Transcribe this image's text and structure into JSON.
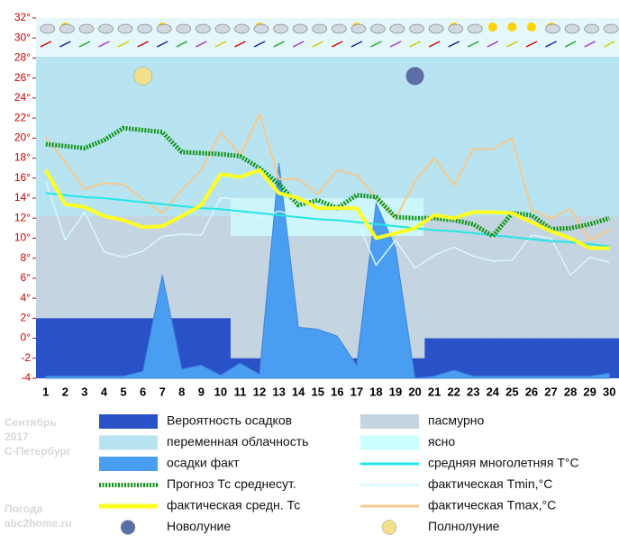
{
  "chart_data": {
    "type": "line",
    "x": [
      1,
      2,
      3,
      4,
      5,
      6,
      7,
      8,
      9,
      10,
      11,
      12,
      13,
      14,
      15,
      16,
      17,
      18,
      19,
      20,
      21,
      22,
      23,
      24,
      25,
      26,
      27,
      28,
      29,
      30
    ],
    "xlim": [
      0.5,
      30.5
    ],
    "ylim": [
      -4,
      32
    ],
    "yticks": [
      {
        "value": -4,
        "label": "-4"
      },
      {
        "value": -2,
        "label": "-2"
      },
      {
        "value": 0,
        "label": "0°"
      },
      {
        "value": 2,
        "label": "2°"
      },
      {
        "value": 4,
        "label": "4°"
      },
      {
        "value": 6,
        "label": "6°"
      },
      {
        "value": 8,
        "label": "8°"
      },
      {
        "value": 10,
        "label": "10°"
      },
      {
        "value": 12,
        "label": "12°"
      },
      {
        "value": 14,
        "label": "14°"
      },
      {
        "value": 16,
        "label": "16°"
      },
      {
        "value": 18,
        "label": "18°"
      },
      {
        "value": 20,
        "label": "20°"
      },
      {
        "value": 22,
        "label": "22°"
      },
      {
        "value": 24,
        "label": "24°"
      },
      {
        "value": 26,
        "label": "26°"
      },
      {
        "value": 28,
        "label": "28°"
      },
      {
        "value": 30,
        "label": "30°"
      },
      {
        "value": 32,
        "label": "32°"
      }
    ],
    "series": [
      {
        "name": "Вероятность осадков",
        "style": "band",
        "color": "#2a52c8",
        "values": [
          2,
          2,
          2,
          2,
          2,
          2,
          2,
          2,
          2,
          2,
          -2,
          -2,
          -2,
          -2,
          -2,
          -2,
          -2,
          -2,
          -2,
          -2,
          0,
          0,
          0,
          0,
          0,
          0,
          0,
          0,
          0,
          0
        ]
      },
      {
        "name": "осадки факт",
        "style": "area",
        "color": "#4a9ef2",
        "values": [
          -3.8,
          -3.8,
          -3.8,
          -3.8,
          -3.8,
          -3.3,
          6.3,
          -3.1,
          -2.7,
          -3.7,
          -2.5,
          -3.6,
          17.5,
          1.1,
          0.9,
          0.2,
          -2.7,
          13.5,
          9,
          -4,
          -3.8,
          -3.2,
          -3.8,
          -3.8,
          -3.8,
          -3.8,
          -3.8,
          -3.8,
          -3.8,
          -3.5
        ]
      },
      {
        "name": "Прогноз Тс среднесут.",
        "style": "dotted",
        "color": "#11961a",
        "values": [
          19.4,
          19.2,
          19,
          19.8,
          21,
          20.8,
          20.6,
          18.6,
          18.5,
          18.4,
          18.2,
          17,
          15.4,
          13.3,
          13.8,
          13,
          14.3,
          14.1,
          12.1,
          12,
          12,
          11.8,
          11.4,
          10.2,
          12.5,
          12.3,
          10.9,
          11,
          11.4,
          12
        ]
      },
      {
        "name": "фактическая средн. Тс",
        "style": "line",
        "width": 4,
        "color": "#ffff20",
        "values": [
          16.8,
          13.4,
          13.1,
          12.2,
          11.8,
          11.1,
          11.2,
          12.2,
          13.3,
          16.4,
          16.1,
          16.8,
          14.5,
          14,
          13,
          13,
          13,
          10,
          10.5,
          11,
          12.3,
          12,
          12.6,
          12.6,
          12.5,
          11.6,
          10.7,
          10,
          9,
          9
        ]
      },
      {
        "name": "средняя многолетняя T°C",
        "style": "line",
        "width": 2,
        "color": "#22e6e6",
        "values": [
          14.5,
          14.3,
          14.1,
          14,
          13.8,
          13.6,
          13.4,
          13.2,
          13,
          12.9,
          12.7,
          12.5,
          12.3,
          12.1,
          11.9,
          11.8,
          11.6,
          11.4,
          11.2,
          11,
          10.8,
          10.7,
          10.5,
          10.3,
          10.1,
          9.9,
          9.7,
          9.6,
          9.4,
          9.2
        ]
      },
      {
        "name": "фактическая Tmin,°C",
        "style": "line",
        "width": 1.5,
        "color": "#d8f8ff",
        "values": [
          15.7,
          9.8,
          12.6,
          8.6,
          8.1,
          8.7,
          10.2,
          10.4,
          10.3,
          14,
          13.9,
          12,
          12.7,
          12.2,
          11.4,
          10.6,
          11.8,
          7.3,
          9.8,
          7,
          8.3,
          9.1,
          8.2,
          7.7,
          7.8,
          10.3,
          10,
          6.3,
          8.1,
          7.6
        ]
      },
      {
        "name": "фактическая Tmax,°C",
        "style": "line",
        "width": 2,
        "color": "#f6c88c",
        "values": [
          20.1,
          17.6,
          14.9,
          15.5,
          15.4,
          13.9,
          12.5,
          14.8,
          16.8,
          20.6,
          18.3,
          22.4,
          15.9,
          15.9,
          14.4,
          16.8,
          16.3,
          14.1,
          11.9,
          15.7,
          18,
          15.3,
          18.9,
          18.9,
          20,
          12.8,
          12,
          12.9,
          9.8,
          10.8
        ]
      }
    ],
    "cloud_legend": [
      {
        "name": "переменная облачность",
        "color": "#b8e4f2"
      },
      {
        "name": "пасмурно",
        "color": "#c4d4e0"
      },
      {
        "name": "ясно",
        "color": "#ccffff"
      }
    ],
    "moons": [
      {
        "name": "Новолуние",
        "x": 20,
        "value": 26.2,
        "color": "#5a6fa8"
      },
      {
        "name": "Полнолуние",
        "x": 6,
        "value": 26.2,
        "color": "#f2e08a"
      }
    ],
    "captions": {
      "month": "Сентябрь",
      "year": "2017",
      "city": "С-Петербург",
      "brand": "Погода",
      "site": "abc2home.ru"
    }
  }
}
